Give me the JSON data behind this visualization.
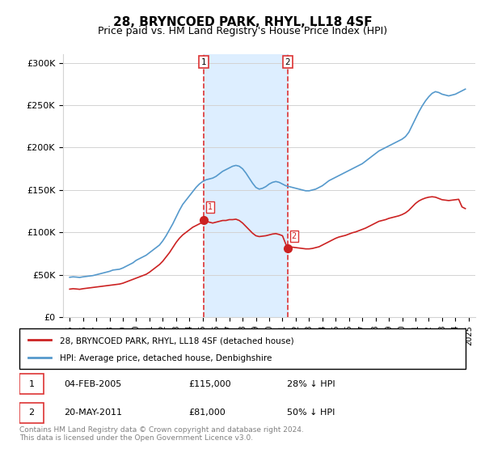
{
  "title": "28, BRYNCOED PARK, RHYL, LL18 4SF",
  "subtitle": "Price paid vs. HM Land Registry's House Price Index (HPI)",
  "title_fontsize": 11,
  "subtitle_fontsize": 9,
  "ylabel_ticks": [
    "£0",
    "£50K",
    "£100K",
    "£150K",
    "£200K",
    "£250K",
    "£300K"
  ],
  "ytick_values": [
    0,
    50000,
    100000,
    150000,
    200000,
    250000,
    300000
  ],
  "ylim": [
    0,
    310000
  ],
  "xlim_start": 1994.5,
  "xlim_end": 2025.5,
  "sale1_year": 2005.09,
  "sale1_price": 115000,
  "sale2_year": 2011.38,
  "sale2_price": 81000,
  "shade_color": "#ddeeff",
  "hpi_color": "#5599cc",
  "price_color": "#cc2222",
  "vline_color": "#dd3333",
  "legend_label1": "28, BRYNCOED PARK, RHYL, LL18 4SF (detached house)",
  "legend_label2": "HPI: Average price, detached house, Denbighshire",
  "ann1_num": "1",
  "ann1_date": "04-FEB-2005",
  "ann1_price": "£115,000",
  "ann1_hpi": "28% ↓ HPI",
  "ann2_num": "2",
  "ann2_date": "20-MAY-2011",
  "ann2_price": "£81,000",
  "ann2_hpi": "50% ↓ HPI",
  "footnote": "Contains HM Land Registry data © Crown copyright and database right 2024.\nThis data is licensed under the Open Government Licence v3.0.",
  "hpi_data": [
    [
      1995.0,
      47000
    ],
    [
      1995.25,
      47500
    ],
    [
      1995.5,
      47200
    ],
    [
      1995.75,
      46800
    ],
    [
      1996.0,
      47500
    ],
    [
      1996.25,
      48000
    ],
    [
      1996.5,
      48500
    ],
    [
      1996.75,
      49000
    ],
    [
      1997.0,
      50000
    ],
    [
      1997.25,
      51000
    ],
    [
      1997.5,
      52000
    ],
    [
      1997.75,
      53000
    ],
    [
      1998.0,
      54000
    ],
    [
      1998.25,
      55500
    ],
    [
      1998.5,
      56000
    ],
    [
      1998.75,
      56500
    ],
    [
      1999.0,
      58000
    ],
    [
      1999.25,
      60000
    ],
    [
      1999.5,
      62000
    ],
    [
      1999.75,
      64000
    ],
    [
      2000.0,
      67000
    ],
    [
      2000.25,
      69000
    ],
    [
      2000.5,
      71000
    ],
    [
      2000.75,
      73000
    ],
    [
      2001.0,
      76000
    ],
    [
      2001.25,
      79000
    ],
    [
      2001.5,
      82000
    ],
    [
      2001.75,
      85000
    ],
    [
      2002.0,
      90000
    ],
    [
      2002.25,
      96000
    ],
    [
      2002.5,
      103000
    ],
    [
      2002.75,
      110000
    ],
    [
      2003.0,
      118000
    ],
    [
      2003.25,
      126000
    ],
    [
      2003.5,
      133000
    ],
    [
      2003.75,
      138000
    ],
    [
      2004.0,
      143000
    ],
    [
      2004.25,
      148000
    ],
    [
      2004.5,
      153000
    ],
    [
      2004.75,
      157000
    ],
    [
      2005.0,
      160000
    ],
    [
      2005.25,
      162000
    ],
    [
      2005.5,
      163000
    ],
    [
      2005.75,
      164000
    ],
    [
      2006.0,
      166000
    ],
    [
      2006.25,
      169000
    ],
    [
      2006.5,
      172000
    ],
    [
      2006.75,
      174000
    ],
    [
      2007.0,
      176000
    ],
    [
      2007.25,
      178000
    ],
    [
      2007.5,
      179000
    ],
    [
      2007.75,
      178000
    ],
    [
      2008.0,
      175000
    ],
    [
      2008.25,
      170000
    ],
    [
      2008.5,
      164000
    ],
    [
      2008.75,
      158000
    ],
    [
      2009.0,
      153000
    ],
    [
      2009.25,
      151000
    ],
    [
      2009.5,
      152000
    ],
    [
      2009.75,
      154000
    ],
    [
      2010.0,
      157000
    ],
    [
      2010.25,
      159000
    ],
    [
      2010.5,
      160000
    ],
    [
      2010.75,
      159000
    ],
    [
      2011.0,
      157000
    ],
    [
      2011.25,
      155000
    ],
    [
      2011.5,
      154000
    ],
    [
      2011.75,
      153000
    ],
    [
      2012.0,
      152000
    ],
    [
      2012.25,
      151000
    ],
    [
      2012.5,
      150000
    ],
    [
      2012.75,
      149000
    ],
    [
      2013.0,
      149000
    ],
    [
      2013.25,
      150000
    ],
    [
      2013.5,
      151000
    ],
    [
      2013.75,
      153000
    ],
    [
      2014.0,
      155000
    ],
    [
      2014.25,
      158000
    ],
    [
      2014.5,
      161000
    ],
    [
      2014.75,
      163000
    ],
    [
      2015.0,
      165000
    ],
    [
      2015.25,
      167000
    ],
    [
      2015.5,
      169000
    ],
    [
      2015.75,
      171000
    ],
    [
      2016.0,
      173000
    ],
    [
      2016.25,
      175000
    ],
    [
      2016.5,
      177000
    ],
    [
      2016.75,
      179000
    ],
    [
      2017.0,
      181000
    ],
    [
      2017.25,
      184000
    ],
    [
      2017.5,
      187000
    ],
    [
      2017.75,
      190000
    ],
    [
      2018.0,
      193000
    ],
    [
      2018.25,
      196000
    ],
    [
      2018.5,
      198000
    ],
    [
      2018.75,
      200000
    ],
    [
      2019.0,
      202000
    ],
    [
      2019.25,
      204000
    ],
    [
      2019.5,
      206000
    ],
    [
      2019.75,
      208000
    ],
    [
      2020.0,
      210000
    ],
    [
      2020.25,
      213000
    ],
    [
      2020.5,
      218000
    ],
    [
      2020.75,
      226000
    ],
    [
      2021.0,
      234000
    ],
    [
      2021.25,
      242000
    ],
    [
      2021.5,
      249000
    ],
    [
      2021.75,
      255000
    ],
    [
      2022.0,
      260000
    ],
    [
      2022.25,
      264000
    ],
    [
      2022.5,
      266000
    ],
    [
      2022.75,
      265000
    ],
    [
      2023.0,
      263000
    ],
    [
      2023.25,
      262000
    ],
    [
      2023.5,
      261000
    ],
    [
      2023.75,
      262000
    ],
    [
      2024.0,
      263000
    ],
    [
      2024.25,
      265000
    ],
    [
      2024.5,
      267000
    ],
    [
      2024.75,
      269000
    ]
  ],
  "price_data": [
    [
      1995.0,
      33000
    ],
    [
      1995.25,
      33500
    ],
    [
      1995.5,
      33200
    ],
    [
      1995.75,
      32800
    ],
    [
      1996.0,
      33500
    ],
    [
      1996.25,
      34000
    ],
    [
      1996.5,
      34500
    ],
    [
      1996.75,
      35000
    ],
    [
      1997.0,
      35500
    ],
    [
      1997.25,
      36000
    ],
    [
      1997.5,
      36500
    ],
    [
      1997.75,
      37000
    ],
    [
      1998.0,
      37500
    ],
    [
      1998.25,
      38000
    ],
    [
      1998.5,
      38500
    ],
    [
      1998.75,
      39000
    ],
    [
      1999.0,
      40000
    ],
    [
      1999.25,
      41500
    ],
    [
      1999.5,
      43000
    ],
    [
      1999.75,
      44500
    ],
    [
      2000.0,
      46000
    ],
    [
      2000.25,
      47500
    ],
    [
      2000.5,
      49000
    ],
    [
      2000.75,
      50500
    ],
    [
      2001.0,
      53000
    ],
    [
      2001.25,
      56000
    ],
    [
      2001.5,
      59000
    ],
    [
      2001.75,
      62000
    ],
    [
      2002.0,
      66000
    ],
    [
      2002.25,
      71000
    ],
    [
      2002.5,
      76000
    ],
    [
      2002.75,
      82000
    ],
    [
      2003.0,
      88000
    ],
    [
      2003.25,
      93000
    ],
    [
      2003.5,
      97000
    ],
    [
      2003.75,
      100000
    ],
    [
      2004.0,
      103000
    ],
    [
      2004.25,
      106000
    ],
    [
      2004.5,
      108000
    ],
    [
      2004.75,
      110000
    ],
    [
      2005.0,
      112000
    ],
    [
      2005.09,
      115000
    ],
    [
      2005.25,
      113000
    ],
    [
      2005.5,
      112000
    ],
    [
      2005.75,
      111000
    ],
    [
      2006.0,
      112000
    ],
    [
      2006.25,
      113000
    ],
    [
      2006.5,
      114000
    ],
    [
      2006.75,
      114000
    ],
    [
      2007.0,
      115000
    ],
    [
      2007.25,
      115000
    ],
    [
      2007.5,
      115500
    ],
    [
      2007.75,
      114000
    ],
    [
      2008.0,
      111000
    ],
    [
      2008.25,
      107000
    ],
    [
      2008.5,
      103000
    ],
    [
      2008.75,
      99000
    ],
    [
      2009.0,
      96000
    ],
    [
      2009.25,
      95000
    ],
    [
      2009.5,
      95500
    ],
    [
      2009.75,
      96000
    ],
    [
      2010.0,
      97000
    ],
    [
      2010.25,
      98000
    ],
    [
      2010.5,
      98500
    ],
    [
      2010.75,
      97500
    ],
    [
      2011.0,
      96000
    ],
    [
      2011.38,
      81000
    ],
    [
      2011.5,
      83000
    ],
    [
      2011.75,
      82500
    ],
    [
      2012.0,
      82000
    ],
    [
      2012.25,
      81500
    ],
    [
      2012.5,
      81000
    ],
    [
      2012.75,
      80500
    ],
    [
      2013.0,
      80500
    ],
    [
      2013.25,
      81000
    ],
    [
      2013.5,
      82000
    ],
    [
      2013.75,
      83000
    ],
    [
      2014.0,
      85000
    ],
    [
      2014.25,
      87000
    ],
    [
      2014.5,
      89000
    ],
    [
      2014.75,
      91000
    ],
    [
      2015.0,
      93000
    ],
    [
      2015.25,
      94500
    ],
    [
      2015.5,
      95500
    ],
    [
      2015.75,
      96500
    ],
    [
      2016.0,
      98000
    ],
    [
      2016.25,
      99500
    ],
    [
      2016.5,
      100500
    ],
    [
      2016.75,
      102000
    ],
    [
      2017.0,
      103500
    ],
    [
      2017.25,
      105000
    ],
    [
      2017.5,
      107000
    ],
    [
      2017.75,
      109000
    ],
    [
      2018.0,
      111000
    ],
    [
      2018.25,
      113000
    ],
    [
      2018.5,
      114000
    ],
    [
      2018.75,
      115000
    ],
    [
      2019.0,
      116500
    ],
    [
      2019.25,
      117500
    ],
    [
      2019.5,
      118500
    ],
    [
      2019.75,
      119500
    ],
    [
      2020.0,
      121000
    ],
    [
      2020.25,
      123000
    ],
    [
      2020.5,
      126000
    ],
    [
      2020.75,
      130000
    ],
    [
      2021.0,
      134000
    ],
    [
      2021.25,
      137000
    ],
    [
      2021.5,
      139000
    ],
    [
      2021.75,
      140500
    ],
    [
      2022.0,
      141500
    ],
    [
      2022.25,
      142000
    ],
    [
      2022.5,
      141500
    ],
    [
      2022.75,
      140000
    ],
    [
      2023.0,
      138500
    ],
    [
      2023.25,
      138000
    ],
    [
      2023.5,
      137500
    ],
    [
      2023.75,
      138000
    ],
    [
      2024.0,
      138500
    ],
    [
      2024.25,
      139000
    ],
    [
      2024.5,
      130000
    ],
    [
      2024.75,
      128000
    ]
  ]
}
